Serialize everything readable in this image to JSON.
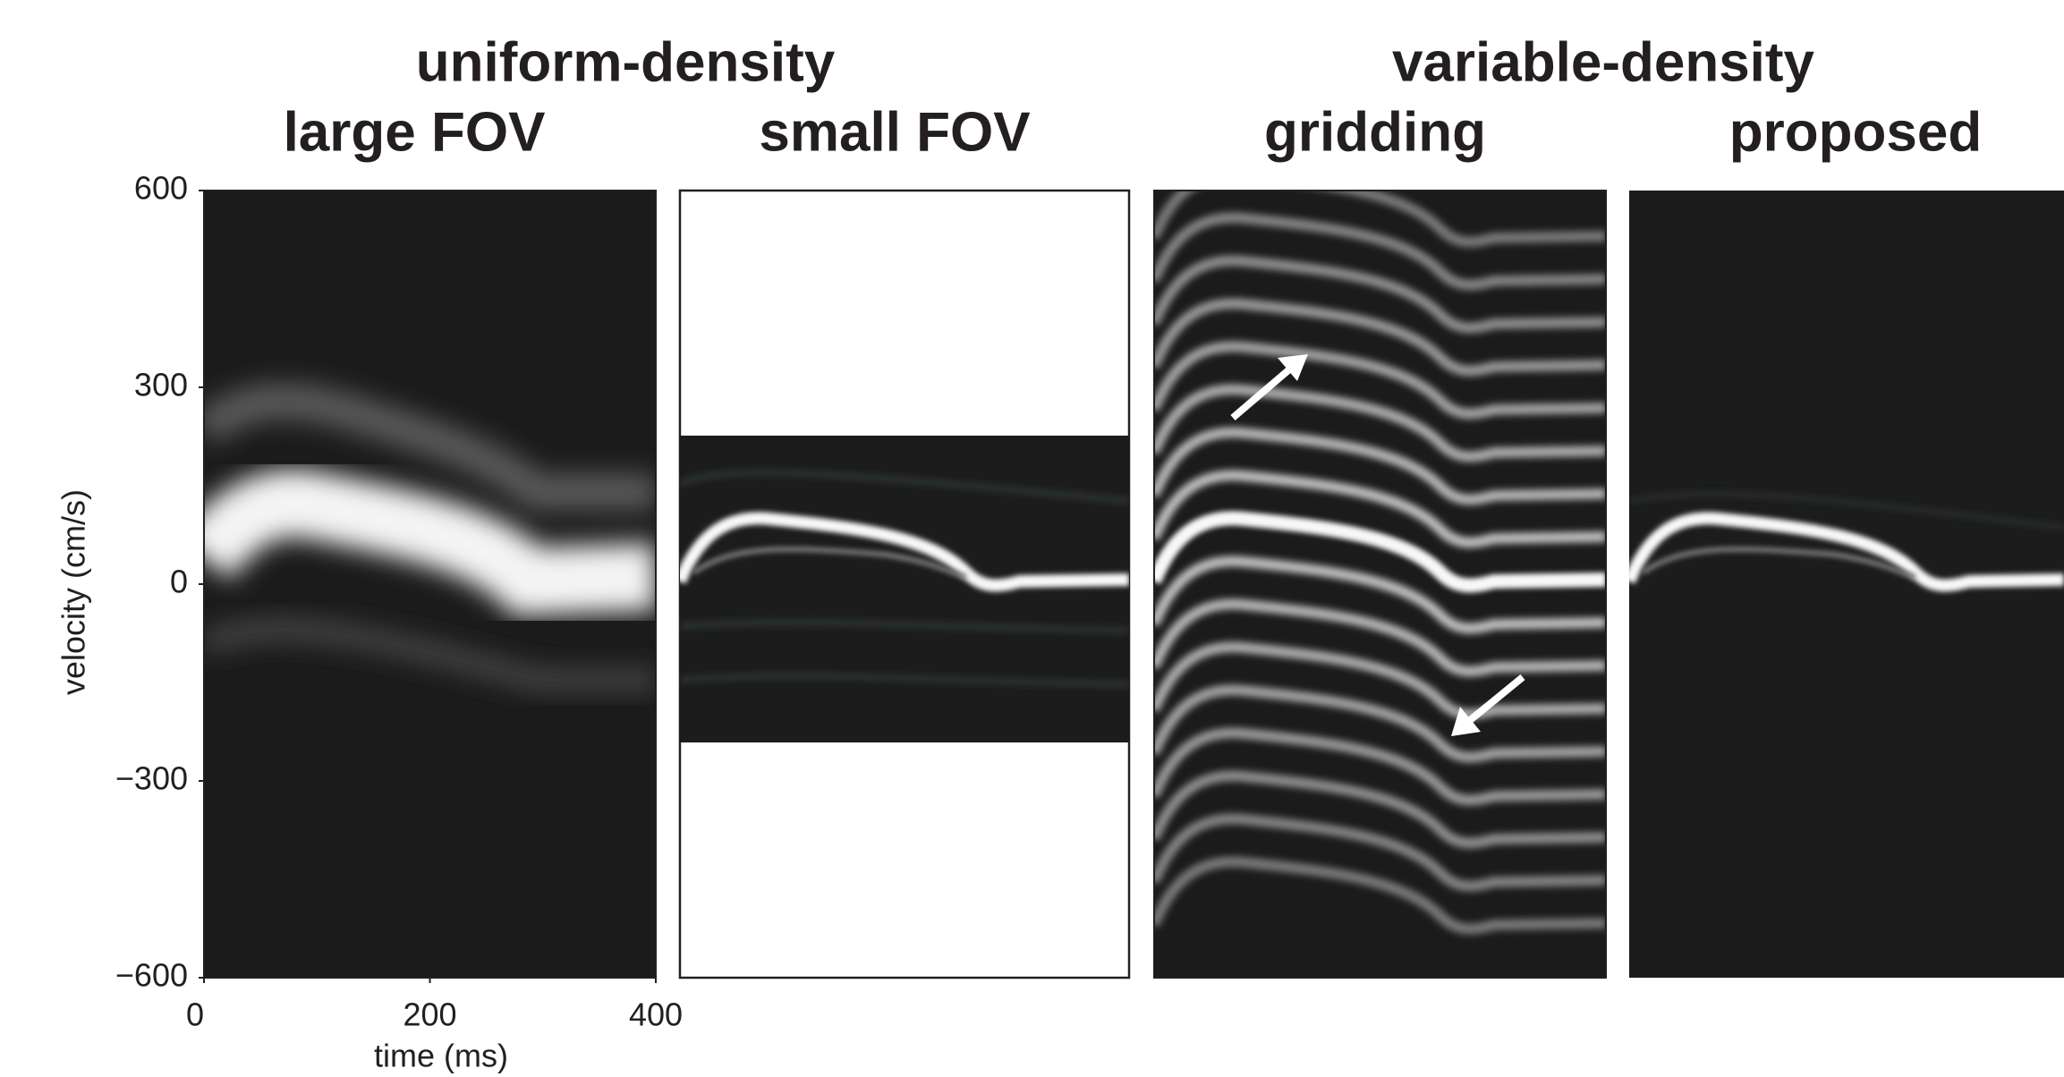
{
  "figure": {
    "group_titles": [
      "uniform-density",
      "variable-density"
    ],
    "panel_titles": [
      "large FOV",
      "small FOV",
      "gridding",
      "proposed"
    ],
    "y_label": "velocity (cm/s)",
    "x_label": "time (ms)",
    "ylim": [
      -600,
      600
    ],
    "yticks": [
      600,
      300,
      0,
      {
        "value": -300,
        "label": "−300"
      },
      {
        "value": -600,
        "label": "−600"
      }
    ],
    "xlim": [
      0,
      400
    ],
    "xticks": [
      0,
      200,
      400
    ]
  }
}
